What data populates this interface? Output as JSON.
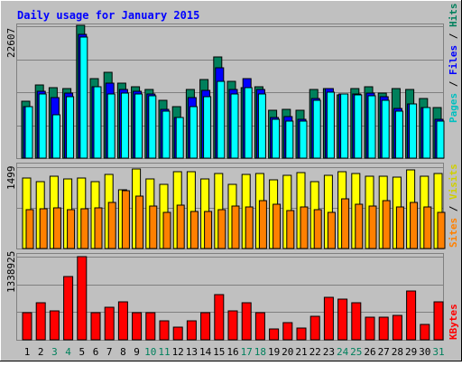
{
  "chart_data": [
    {
      "type": "bar",
      "title": "Daily usage for January 2015",
      "ymax_label": "22607",
      "ylim": [
        0,
        22607
      ],
      "days": [
        "1",
        "2",
        "3",
        "4",
        "5",
        "6",
        "7",
        "8",
        "9",
        "10",
        "11",
        "12",
        "13",
        "14",
        "15",
        "16",
        "17",
        "18",
        "19",
        "20",
        "21",
        "22",
        "23",
        "24",
        "25",
        "26",
        "27",
        "28",
        "29",
        "30",
        "31"
      ],
      "weekend_days": [
        "3",
        "4",
        "10",
        "11",
        "17",
        "18",
        "24",
        "25",
        "31"
      ],
      "colors": {
        "hits": "#00805c",
        "files": "#0000ff",
        "pages": "#00ffff",
        "weekend_label": "#00805c",
        "weekday_label": "#000000",
        "title": "#0000ff"
      },
      "legend": [
        {
          "label": "Hits",
          "color": "#00805c"
        },
        {
          "label": "Files",
          "color": "#0000ff"
        },
        {
          "label": "Pages",
          "color": "#00c0c0"
        }
      ],
      "series": [
        {
          "name": "Hits",
          "values": [
            9800,
            12500,
            12100,
            12000,
            22800,
            13600,
            14700,
            12800,
            12300,
            11800,
            9900,
            8800,
            11700,
            13500,
            17300,
            13200,
            12100,
            12200,
            8200,
            8400,
            8200,
            11800,
            11900,
            10900,
            11900,
            12300,
            11100,
            11900,
            11700,
            10200,
            8600
          ]
        },
        {
          "name": "Files",
          "values": [
            8900,
            11400,
            10300,
            11100,
            21200,
            12300,
            12900,
            11800,
            11500,
            11000,
            8400,
            7000,
            10300,
            11600,
            15500,
            11700,
            13700,
            11700,
            6900,
            7100,
            6600,
            10200,
            11900,
            11000,
            11000,
            11100,
            10600,
            8500,
            9300,
            8700,
            6700
          ]
        },
        {
          "name": "Pages",
          "values": [
            8800,
            11000,
            7500,
            10600,
            20700,
            12300,
            11000,
            11200,
            11000,
            10700,
            8000,
            6900,
            8800,
            10500,
            13200,
            11000,
            12100,
            11000,
            6700,
            6300,
            6400,
            9900,
            11300,
            11000,
            10800,
            10700,
            9900,
            8000,
            9300,
            8700,
            6400
          ]
        }
      ]
    },
    {
      "type": "bar",
      "ymax_label": "1499",
      "ylim": [
        0,
        1499
      ],
      "colors": {
        "visits": "#ffff00",
        "sites": "#ff8000"
      },
      "legend": [
        {
          "label": "Visits",
          "color": "#d0d000"
        },
        {
          "label": "Sites",
          "color": "#ff8000"
        }
      ],
      "series": [
        {
          "name": "Visits",
          "values": [
            1300,
            1240,
            1330,
            1290,
            1300,
            1240,
            1360,
            1090,
            1460,
            1290,
            1190,
            1420,
            1410,
            1290,
            1390,
            1190,
            1370,
            1380,
            1260,
            1350,
            1400,
            1240,
            1350,
            1420,
            1390,
            1340,
            1330,
            1320,
            1450,
            1340,
            1380
          ]
        },
        {
          "name": "Sites",
          "values": [
            710,
            735,
            755,
            710,
            730,
            750,
            850,
            1060,
            960,
            790,
            670,
            800,
            690,
            680,
            710,
            780,
            760,
            880,
            810,
            700,
            760,
            710,
            670,
            920,
            810,
            790,
            880,
            770,
            850,
            770,
            660
          ]
        }
      ]
    },
    {
      "type": "bar",
      "ymax_label": "1338925",
      "ylim": [
        0,
        1338925
      ],
      "colors": {
        "kbytes": "#ff0000"
      },
      "legend": [
        {
          "label": "KBytes",
          "color": "#ff0000"
        }
      ],
      "series": [
        {
          "name": "KBytes",
          "values": [
            440000,
            590000,
            460000,
            1020000,
            1340000,
            440000,
            520000,
            610000,
            440000,
            440000,
            300000,
            200000,
            310000,
            440000,
            730000,
            460000,
            600000,
            440000,
            180000,
            270000,
            190000,
            380000,
            690000,
            650000,
            600000,
            370000,
            360000,
            390000,
            790000,
            250000,
            610000
          ]
        }
      ]
    }
  ]
}
